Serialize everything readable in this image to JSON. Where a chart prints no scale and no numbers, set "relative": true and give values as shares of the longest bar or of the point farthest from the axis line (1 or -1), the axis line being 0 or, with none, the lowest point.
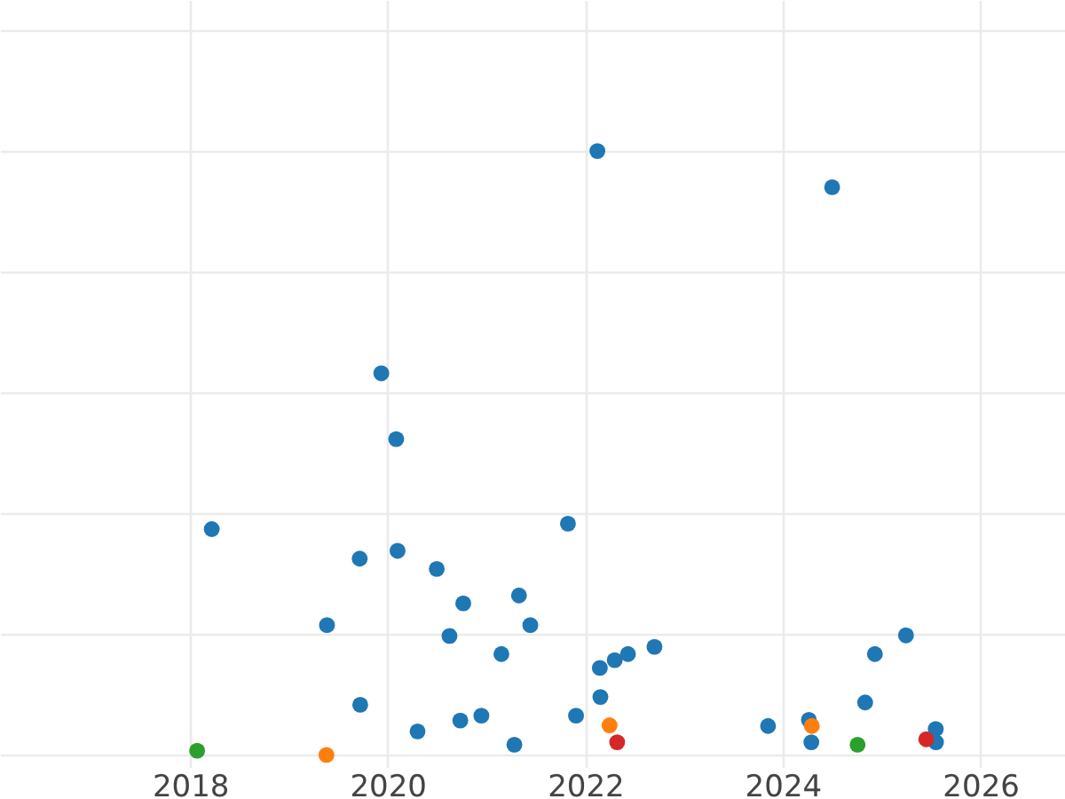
{
  "chart_data": {
    "type": "scatter",
    "relative": true,
    "grid": true,
    "marker": "circle",
    "xlim": [
      "2016-01-29",
      "2026-11-10"
    ],
    "xticks": [
      "2018",
      "2020",
      "2022",
      "2024",
      "2026"
    ],
    "series": [
      {
        "color": "#1f77b4",
        "x": [
          "2018-03-22",
          "2019-05-22",
          "2019-09-20",
          "2019-09-22",
          "2019-12-09",
          "2020-02-02",
          "2020-02-07",
          "2020-04-21",
          "2020-07-01",
          "2020-08-17",
          "2020-09-26",
          "2020-10-07",
          "2020-12-13",
          "2021-02-25",
          "2021-04-14",
          "2021-05-01",
          "2021-06-12",
          "2021-10-29",
          "2021-11-28",
          "2022-02-15",
          "2022-02-24",
          "2022-02-26",
          "2022-04-20",
          "2022-06-08",
          "2022-09-14",
          "2023-11-08",
          "2024-04-07",
          "2024-04-16",
          "2024-07-02",
          "2024-11-01",
          "2024-12-07",
          "2025-04-01",
          "2025-07-20",
          "2025-07-21"
        ],
        "values": [
          0.374,
          0.215,
          0.325,
          0.083,
          0.632,
          0.523,
          0.338,
          0.039,
          0.308,
          0.197,
          0.057,
          0.251,
          0.065,
          0.167,
          0.017,
          0.264,
          0.215,
          0.383,
          0.065,
          1,
          0.144,
          0.096,
          0.157,
          0.167,
          0.179,
          0.048,
          0.058,
          0.021,
          0.94,
          0.087,
          0.167,
          0.198,
          0.043,
          0.021
        ]
      },
      {
        "color": "#ff7f0e",
        "x": [
          "2019-05-20",
          "2022-04-01",
          "2024-04-18"
        ],
        "values": [
          0,
          0.049,
          0.048
        ]
      },
      {
        "color": "#2ca02c",
        "x": [
          "2018-01-27",
          "2024-10-04"
        ],
        "values": [
          0.007,
          0.017
        ]
      },
      {
        "color": "#d62728",
        "x": [
          "2022-04-29",
          "2025-06-15"
        ],
        "values": [
          0.021,
          0.026
        ]
      }
    ]
  }
}
